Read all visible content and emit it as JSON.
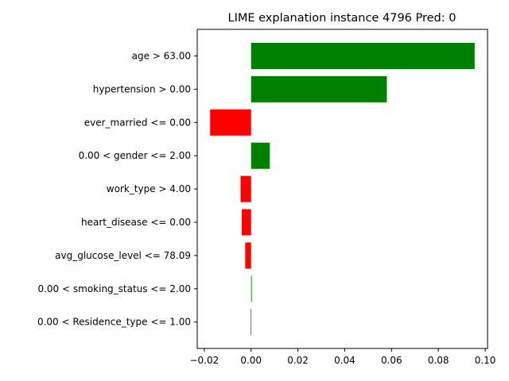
{
  "chart_data": {
    "type": "bar",
    "orientation": "horizontal",
    "title": "LIME explanation instance 4796 Pred: 0",
    "xlabel": "",
    "ylabel": "",
    "xlim": [
      -0.023,
      0.101
    ],
    "xticks": [
      -0.02,
      0.0,
      0.02,
      0.04,
      0.06,
      0.08,
      0.1
    ],
    "xtick_labels": [
      "−0.02",
      "0.00",
      "0.02",
      "0.04",
      "0.06",
      "0.08",
      "0.10"
    ],
    "grid": false,
    "legend": "none",
    "positive_color": "#008000",
    "negative_color": "#ff0000",
    "categories": [
      "age > 63.00",
      "hypertension > 0.00",
      "ever_married <= 0.00",
      "0.00 < gender <= 2.00",
      "work_type > 4.00",
      "heart_disease <= 0.00",
      "avg_glucose_level <= 78.09",
      "0.00 < smoking_status <= 2.00",
      "0.00 < Residence_type <= 1.00"
    ],
    "values": [
      0.0955,
      0.058,
      -0.0175,
      0.008,
      -0.0045,
      -0.004,
      -0.0025,
      0.0003,
      -0.0002
    ]
  }
}
